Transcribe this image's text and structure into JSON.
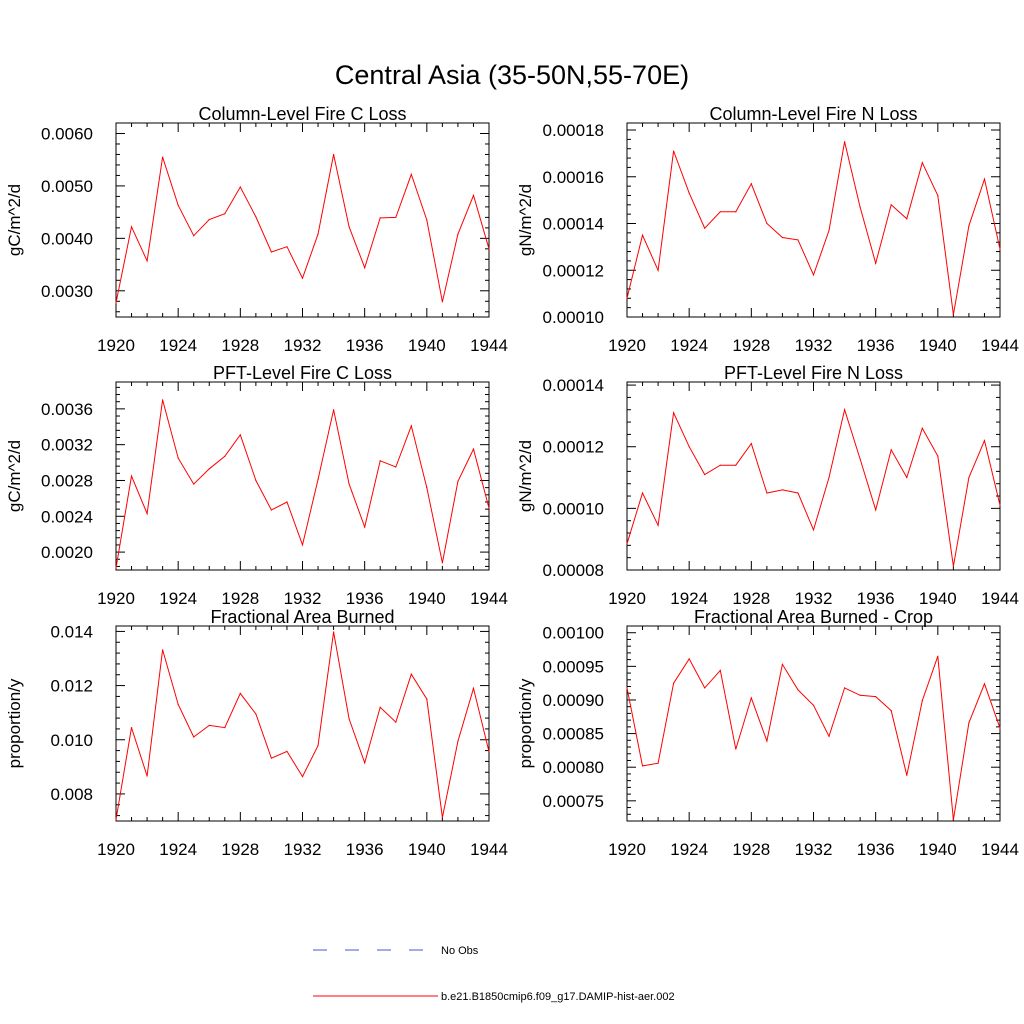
{
  "figure": {
    "title": "Central Asia (35-50N,55-70E)"
  },
  "legend": {
    "entries": [
      {
        "label": "No Obs",
        "color": "#4a57c8",
        "style": "dashed"
      },
      {
        "label": "b.e21.B1850cmip6.f09_g17.DAMIP-hist-aer.002",
        "color": "#ff0000",
        "style": "solid"
      }
    ]
  },
  "chart_data": [
    {
      "type": "line",
      "title": "Column-Level Fire C Loss",
      "ylabel": "gC/m^2/d",
      "xlim": [
        1920,
        1944
      ],
      "ylim": [
        0.0025,
        0.0062
      ],
      "x_ticks": [
        1920,
        1924,
        1928,
        1932,
        1936,
        1940,
        1944
      ],
      "y_ticks": [
        0.003,
        0.004,
        0.005,
        0.006
      ],
      "y_tick_labels": [
        "0.0030",
        "0.0040",
        "0.0050",
        "0.0060"
      ],
      "series": [
        {
          "color": "#ff0000",
          "x": [
            1920,
            1921,
            1922,
            1923,
            1924,
            1925,
            1926,
            1927,
            1928,
            1929,
            1930,
            1931,
            1932,
            1933,
            1934,
            1935,
            1936,
            1937,
            1938,
            1939,
            1940,
            1941,
            1942,
            1943,
            1944
          ],
          "y": [
            0.00277,
            0.00422,
            0.00357,
            0.00555,
            0.00463,
            0.00405,
            0.00436,
            0.00447,
            0.00498,
            0.00441,
            0.00374,
            0.00384,
            0.00324,
            0.00408,
            0.0056,
            0.00422,
            0.00344,
            0.00439,
            0.0044,
            0.00522,
            0.00435,
            0.00279,
            0.00408,
            0.00482,
            0.0038
          ]
        }
      ]
    },
    {
      "type": "line",
      "title": "Column-Level Fire N Loss",
      "ylabel": "gN/m^2/d",
      "xlim": [
        1920,
        1944
      ],
      "ylim": [
        0.0001,
        0.000183
      ],
      "x_ticks": [
        1920,
        1924,
        1928,
        1932,
        1936,
        1940,
        1944
      ],
      "y_ticks": [
        0.0001,
        0.00012,
        0.00014,
        0.00016,
        0.00018
      ],
      "y_tick_labels": [
        "0.00010",
        "0.00012",
        "0.00014",
        "0.00016",
        "0.00018"
      ],
      "series": [
        {
          "color": "#ff0000",
          "x": [
            1920,
            1921,
            1922,
            1923,
            1924,
            1925,
            1926,
            1927,
            1928,
            1929,
            1930,
            1931,
            1932,
            1933,
            1934,
            1935,
            1936,
            1937,
            1938,
            1939,
            1940,
            1941,
            1942,
            1943,
            1944
          ],
          "y": [
            0.000108,
            0.000135,
            0.00012,
            0.000171,
            0.000153,
            0.000138,
            0.000145,
            0.000145,
            0.000157,
            0.00014,
            0.000134,
            0.000133,
            0.000118,
            0.000137,
            0.000175,
            0.000147,
            0.000123,
            0.000148,
            0.000142,
            0.000166,
            0.000152,
            0.000101,
            0.000139,
            0.000159,
            0.000129
          ]
        }
      ]
    },
    {
      "type": "line",
      "title": "PFT-Level Fire C Loss",
      "ylabel": "gC/m^2/d",
      "xlim": [
        1920,
        1944
      ],
      "ylim": [
        0.0018,
        0.0039
      ],
      "x_ticks": [
        1920,
        1924,
        1928,
        1932,
        1936,
        1940,
        1944
      ],
      "y_ticks": [
        0.002,
        0.0024,
        0.0028,
        0.0032,
        0.0036
      ],
      "y_tick_labels": [
        "0.0020",
        "0.0024",
        "0.0028",
        "0.0032",
        "0.0036"
      ],
      "series": [
        {
          "color": "#ff0000",
          "x": [
            1920,
            1921,
            1922,
            1923,
            1924,
            1925,
            1926,
            1927,
            1928,
            1929,
            1930,
            1931,
            1932,
            1933,
            1934,
            1935,
            1936,
            1937,
            1938,
            1939,
            1940,
            1941,
            1942,
            1943,
            1944
          ],
          "y": [
            0.00182,
            0.00285,
            0.00243,
            0.0037,
            0.00305,
            0.00276,
            0.00293,
            0.00307,
            0.00331,
            0.0028,
            0.00247,
            0.00256,
            0.00208,
            0.00281,
            0.00359,
            0.00276,
            0.00228,
            0.00302,
            0.00295,
            0.00341,
            0.00272,
            0.00188,
            0.00279,
            0.00315,
            0.00249
          ]
        }
      ]
    },
    {
      "type": "line",
      "title": "PFT-Level Fire N Loss",
      "ylabel": "gN/m^2/d",
      "xlim": [
        1920,
        1944
      ],
      "ylim": [
        8e-05,
        0.000141
      ],
      "x_ticks": [
        1920,
        1924,
        1928,
        1932,
        1936,
        1940,
        1944
      ],
      "y_ticks": [
        8e-05,
        0.0001,
        0.00012,
        0.00014
      ],
      "y_tick_labels": [
        "0.00008",
        "0.00010",
        "0.00012",
        "0.00014"
      ],
      "series": [
        {
          "color": "#ff0000",
          "x": [
            1920,
            1921,
            1922,
            1923,
            1924,
            1925,
            1926,
            1927,
            1928,
            1929,
            1930,
            1931,
            1932,
            1933,
            1934,
            1935,
            1936,
            1937,
            1938,
            1939,
            1940,
            1941,
            1942,
            1943,
            1944
          ],
          "y": [
            8.85e-05,
            0.000105,
            9.45e-05,
            0.000131,
            0.00012,
            0.000111,
            0.000114,
            0.000114,
            0.000121,
            0.000105,
            0.000106,
            0.000105,
            9.3e-05,
            0.00011,
            0.000132,
            0.000116,
            9.95e-05,
            0.000119,
            0.00011,
            0.000126,
            0.000117,
            8.12e-05,
            0.00011,
            0.000122,
            0.000101
          ]
        }
      ]
    },
    {
      "type": "line",
      "title": "Fractional Area Burned",
      "ylabel": "proportion/y",
      "xlim": [
        1920,
        1944
      ],
      "ylim": [
        0.007,
        0.0142
      ],
      "x_ticks": [
        1920,
        1924,
        1928,
        1932,
        1936,
        1940,
        1944
      ],
      "y_ticks": [
        0.008,
        0.01,
        0.012,
        0.014
      ],
      "y_tick_labels": [
        "0.008",
        "0.010",
        "0.012",
        "0.014"
      ],
      "series": [
        {
          "color": "#ff0000",
          "x": [
            1920,
            1921,
            1922,
            1923,
            1924,
            1925,
            1926,
            1927,
            1928,
            1929,
            1930,
            1931,
            1932,
            1933,
            1934,
            1935,
            1936,
            1937,
            1938,
            1939,
            1940,
            1941,
            1942,
            1943,
            1944
          ],
          "y": [
            0.00705,
            0.01045,
            0.00866,
            0.01332,
            0.0113,
            0.0101,
            0.01053,
            0.01045,
            0.01171,
            0.01095,
            0.00932,
            0.00957,
            0.00864,
            0.00978,
            0.01398,
            0.01077,
            0.00915,
            0.0112,
            0.01065,
            0.01242,
            0.0115,
            0.00713,
            0.00994,
            0.0119,
            0.00956
          ]
        }
      ]
    },
    {
      "type": "line",
      "title": "Fractional Area Burned - Crop",
      "ylabel": "proportion/y",
      "xlim": [
        1920,
        1944
      ],
      "ylim": [
        0.00072,
        0.00101
      ],
      "x_ticks": [
        1920,
        1924,
        1928,
        1932,
        1936,
        1940,
        1944
      ],
      "y_ticks": [
        0.00075,
        0.0008,
        0.00085,
        0.0009,
        0.00095,
        0.001
      ],
      "y_tick_labels": [
        "0.00075",
        "0.00080",
        "0.00085",
        "0.00090",
        "0.00095",
        "0.00100"
      ],
      "series": [
        {
          "color": "#ff0000",
          "x": [
            1920,
            1921,
            1922,
            1923,
            1924,
            1925,
            1926,
            1927,
            1928,
            1929,
            1930,
            1931,
            1932,
            1933,
            1934,
            1935,
            1936,
            1937,
            1938,
            1939,
            1940,
            1941,
            1942,
            1943,
            1944
          ],
          "y": [
            0.000918,
            0.000802,
            0.000806,
            0.000925,
            0.000961,
            0.000918,
            0.000944,
            0.000827,
            0.000903,
            0.000839,
            0.000953,
            0.000915,
            0.000892,
            0.000846,
            0.000918,
            0.000907,
            0.000905,
            0.000884,
            0.000788,
            0.000899,
            0.000965,
            0.000722,
            0.000866,
            0.000924,
            0.000858
          ]
        }
      ]
    }
  ]
}
